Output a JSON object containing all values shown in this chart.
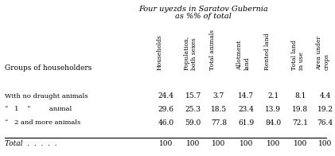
{
  "title_line1": "Four uyezds in Saratov Gubernia",
  "title_line2": "as %% of total",
  "col_headers": [
    "Households",
    "Population,\nboth sexes",
    "Total animals",
    "Allotment\nland",
    "Rented land",
    "Total land\nin use",
    "Area under\ncrops"
  ],
  "row_labels": [
    "With no draught animals",
    "“   1    “         animal",
    "“   2 and more animals"
  ],
  "rows": [
    [
      24.4,
      15.7,
      3.7,
      14.7,
      2.1,
      8.1,
      4.4
    ],
    [
      29.6,
      25.3,
      18.5,
      23.4,
      13.9,
      19.8,
      19.2
    ],
    [
      46.0,
      59.0,
      77.8,
      61.9,
      84.0,
      72.1,
      76.4
    ]
  ],
  "total_row": [
    100,
    100,
    100,
    100,
    100,
    100,
    100
  ],
  "groups_label": "Groups of householders",
  "total_label": "Total  .  .  .  .  ."
}
